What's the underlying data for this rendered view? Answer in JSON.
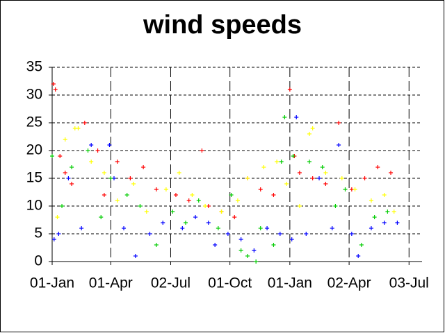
{
  "chart_data": {
    "type": "scatter",
    "title": "wind speeds",
    "xlim": [
      0,
      568
    ],
    "ylim": [
      0,
      35
    ],
    "xticks": [
      {
        "value": 0,
        "label": "01-Jan"
      },
      {
        "value": 90,
        "label": "01-Apr"
      },
      {
        "value": 182,
        "label": "02-Jul"
      },
      {
        "value": 273,
        "label": "01-Oct"
      },
      {
        "value": 365,
        "label": "01-Jan"
      },
      {
        "value": 456,
        "label": "02-Apr"
      },
      {
        "value": 548,
        "label": "03-Jul"
      }
    ],
    "yticks": [
      0,
      5,
      10,
      15,
      20,
      25,
      30,
      35
    ],
    "grid": true,
    "series": [
      {
        "color": "#ff0000",
        "x": [
          2,
          5,
          12,
          20,
          30,
          50,
          70,
          80,
          100,
          120,
          140,
          160,
          190,
          210,
          230,
          240,
          260,
          280,
          300,
          320,
          340,
          365,
          372,
          380,
          400,
          420,
          440,
          460,
          480,
          500,
          520
        ],
        "values": [
          32,
          31,
          19,
          16,
          14,
          25,
          20,
          12,
          18,
          15,
          17,
          13,
          12,
          11,
          20,
          10,
          9,
          8,
          15,
          13,
          12,
          31,
          19,
          16,
          15,
          14,
          25,
          13,
          15,
          17,
          16
        ]
      },
      {
        "color": "#0000ff",
        "x": [
          3,
          10,
          25,
          45,
          60,
          88,
          95,
          110,
          128,
          150,
          170,
          200,
          220,
          240,
          250,
          270,
          290,
          310,
          330,
          350,
          368,
          375,
          390,
          410,
          430,
          440,
          460,
          470,
          490,
          510,
          530
        ],
        "values": [
          4,
          5,
          15,
          6,
          21,
          21,
          15,
          6,
          1,
          5,
          7,
          6,
          8,
          7,
          3,
          5,
          4,
          2,
          6,
          5,
          4,
          26,
          5,
          15,
          6,
          21,
          5,
          1,
          6,
          7,
          7
        ]
      },
      {
        "color": "#00cc00",
        "x": [
          0,
          15,
          30,
          55,
          75,
          90,
          115,
          135,
          160,
          185,
          205,
          225,
          255,
          275,
          290,
          300,
          313,
          320,
          340,
          352,
          357,
          370,
          395,
          415,
          435,
          450,
          475,
          495,
          515
        ],
        "values": [
          19,
          10,
          17,
          20,
          8,
          15,
          12,
          10,
          3,
          9,
          7,
          11,
          6,
          12,
          2,
          1,
          0,
          6,
          3,
          18,
          26,
          19,
          18,
          17,
          10,
          13,
          3,
          8,
          9
        ]
      },
      {
        "color": "#ffff00",
        "x": [
          8,
          20,
          35,
          40,
          60,
          80,
          100,
          125,
          145,
          175,
          195,
          215,
          235,
          260,
          285,
          300,
          325,
          345,
          360,
          380,
          395,
          400,
          420,
          445,
          465,
          490,
          510,
          525
        ],
        "values": [
          8,
          22,
          24,
          24,
          18,
          16,
          11,
          14,
          9,
          13,
          16,
          12,
          10,
          9,
          11,
          15,
          17,
          18,
          14,
          10,
          23,
          24,
          16,
          15,
          13,
          11,
          12,
          9
        ]
      }
    ]
  }
}
